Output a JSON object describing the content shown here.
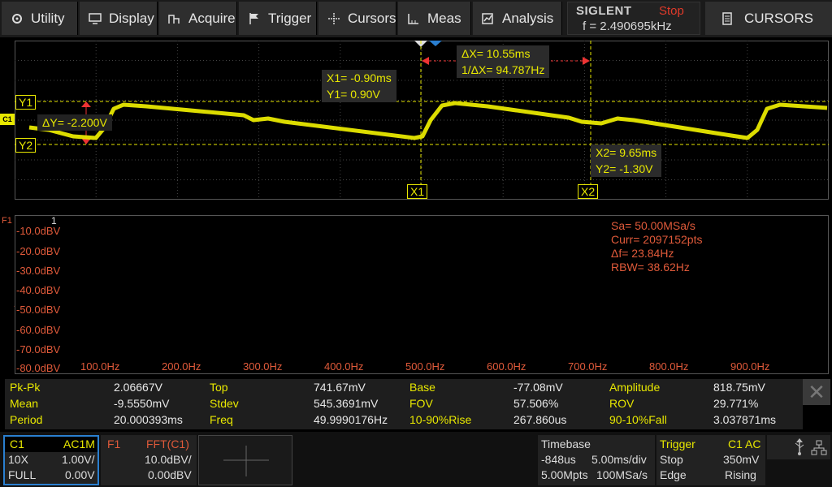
{
  "menu": {
    "utility": "Utility",
    "display": "Display",
    "acquire": "Acquire",
    "trigger": "Trigger",
    "cursors": "Cursors",
    "meas": "Meas",
    "analysis": "Analysis"
  },
  "brand": {
    "logo": "SIGLENT",
    "run_state": "Stop",
    "frequency": "f = 2.490695kHz"
  },
  "right_tab": "CURSORS",
  "waveform": {
    "channel_marker": "C1",
    "y1_tag": "Y1",
    "y2_tag": "Y2",
    "x1_tag": "X1",
    "x2_tag": "X2",
    "delta_y": "ΔY= -2.200V",
    "x1_value": "X1= -0.90ms",
    "y1_value": "Y1= 0.90V",
    "delta_x": "ΔX= 10.55ms",
    "inv_delta_x": "1/ΔX= 94.787Hz",
    "x2_value": "X2= 9.65ms",
    "y2_value": "Y2= -1.30V",
    "trace_color": "#e8e800"
  },
  "fft": {
    "marker": "F1",
    "peak_marker": "1",
    "sample_rate": "Sa=  50.00MSa/s",
    "current_points": "Curr= 2097152pts",
    "delta_f": "Δf=  23.84Hz",
    "rbw": "RBW=  38.62Hz",
    "trace_color": "#e05a3a",
    "db_labels": [
      "-10.0dBV",
      "-20.0dBV",
      "-30.0dBV",
      "-40.0dBV",
      "-50.0dBV",
      "-60.0dBV",
      "-70.0dBV",
      "-80.0dBV"
    ],
    "hz_labels": [
      "100.0Hz",
      "200.0Hz",
      "300.0Hz",
      "400.0Hz",
      "500.0Hz",
      "600.0Hz",
      "700.0Hz",
      "800.0Hz",
      "900.0Hz"
    ]
  },
  "measurements": [
    {
      "label": "Pk-Pk",
      "value": "2.06667V"
    },
    {
      "label": "Top",
      "value": "741.67mV"
    },
    {
      "label": "Base",
      "value": "-77.08mV"
    },
    {
      "label": "Amplitude",
      "value": "818.75mV"
    },
    {
      "label": "Mean",
      "value": "-9.5550mV"
    },
    {
      "label": "Stdev",
      "value": "545.3691mV"
    },
    {
      "label": "FOV",
      "value": "57.506%"
    },
    {
      "label": "ROV",
      "value": "29.771%"
    },
    {
      "label": "Period",
      "value": "20.000393ms"
    },
    {
      "label": "Freq",
      "value": "49.9990176Hz"
    },
    {
      "label": "10-90%Rise",
      "value": "267.860us"
    },
    {
      "label": "90-10%Fall",
      "value": "3.037871ms"
    }
  ],
  "ch1": {
    "name": "C1",
    "coupling": "AC1M",
    "probe": "10X",
    "scale": "1.00V/",
    "bandwidth": "FULL",
    "offset": "0.00V"
  },
  "f1": {
    "name": "F1",
    "source": "FFT(C1)",
    "scale": "10.0dBV/",
    "offset": "0.00dBV"
  },
  "timebase": {
    "title": "Timebase",
    "delay": "-848us",
    "scale": "5.00ms/div",
    "memory": "5.00Mpts",
    "rate": "100MSa/s"
  },
  "trigger": {
    "title": "Trigger",
    "source": "C1 AC",
    "state": "Stop",
    "level": "350mV",
    "type": "Edge",
    "slope": "Rising"
  },
  "colors": {
    "accent_blue": "#2a7fd0",
    "channel_yellow": "#e8e800",
    "fft_orange": "#e05a3a",
    "stop_red": "#e03a2a"
  }
}
